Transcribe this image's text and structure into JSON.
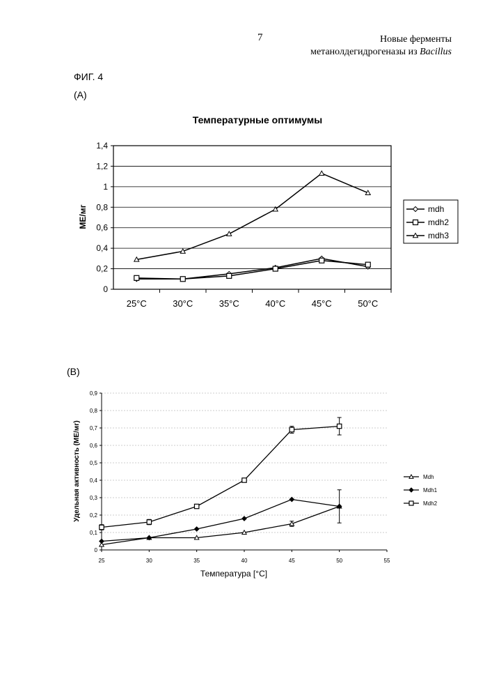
{
  "header": {
    "page_number": "7",
    "title_line1": "Новые ферменты",
    "title_line2_prefix": "метанолдегидрогеназы из ",
    "title_line2_italic": "Bacillus"
  },
  "figure": {
    "label": "ФИГ. 4",
    "panel_a_label": "(A)",
    "panel_b_label": "(B)"
  },
  "chart_data": [
    {
      "type": "line",
      "title": "Температурные оптимумы",
      "xlabel": "",
      "ylabel": "МЕ/мг",
      "categories": [
        "25°C",
        "30°C",
        "35°C",
        "40°C",
        "45°C",
        "50°C"
      ],
      "ylim": [
        0,
        1.4
      ],
      "yticks": [
        "0",
        "0,2",
        "0,4",
        "0,6",
        "0,8",
        "1",
        "1,2",
        "1,4"
      ],
      "grid": true,
      "legend": "right",
      "series": [
        {
          "name": "mdh",
          "marker": "diamond",
          "values": [
            0.1,
            0.1,
            0.15,
            0.21,
            0.3,
            0.22
          ]
        },
        {
          "name": "mdh2",
          "marker": "square",
          "values": [
            0.11,
            0.1,
            0.13,
            0.2,
            0.28,
            0.24
          ]
        },
        {
          "name": "mdh3",
          "marker": "triangle",
          "values": [
            0.29,
            0.37,
            0.54,
            0.78,
            1.13,
            0.94
          ]
        }
      ]
    },
    {
      "type": "line",
      "title": "",
      "xlabel": "Температура [°C]",
      "ylabel": "Удельная активность (МЕ/мг)",
      "x": [
        25,
        30,
        35,
        40,
        45,
        50
      ],
      "xlim": [
        25,
        55
      ],
      "xticks": [
        "25",
        "30",
        "35",
        "40",
        "45",
        "50",
        "55"
      ],
      "ylim": [
        0,
        0.9
      ],
      "yticks": [
        "0",
        "0,1",
        "0,2",
        "0,3",
        "0,4",
        "0,5",
        "0,6",
        "0,7",
        "0,8",
        "0,9"
      ],
      "grid": true,
      "legend": "right",
      "series": [
        {
          "name": "Mdh",
          "marker": "triangle",
          "values": [
            0.03,
            0.07,
            0.07,
            0.1,
            0.15,
            0.25
          ],
          "errors": [
            0,
            0,
            0,
            0,
            0.015,
            0.095
          ]
        },
        {
          "name": "Mdh1",
          "marker": "diamond-filled",
          "values": [
            0.05,
            0.07,
            0.12,
            0.18,
            0.29,
            0.25
          ],
          "errors": [
            0,
            0,
            0,
            0,
            0,
            0
          ]
        },
        {
          "name": "Mdh2",
          "marker": "square",
          "values": [
            0.13,
            0.16,
            0.25,
            0.4,
            0.69,
            0.71
          ],
          "errors": [
            0.015,
            0.015,
            0,
            0,
            0.02,
            0.05
          ]
        }
      ]
    }
  ]
}
